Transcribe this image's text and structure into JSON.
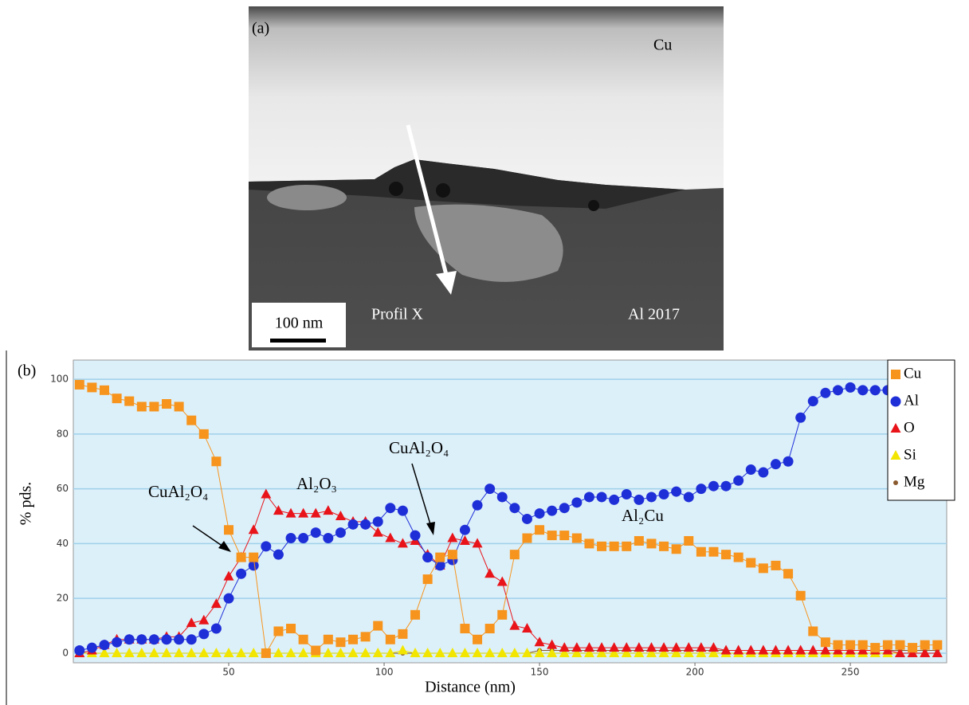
{
  "panel_a": {
    "panel_label": "(a)",
    "top_label": "Cu",
    "profile_label": "Profil X",
    "bottom_label": "Al 2017",
    "scale_bar": "100 nm"
  },
  "chart_data": {
    "type": "line",
    "panel_label": "(b)",
    "x_label": "Distance (nm)",
    "y_label": "% pds.",
    "annotations": [
      "CuAl₂O₄",
      "Al₂O₃",
      "CuAl₂O₄",
      "Al₂Cu"
    ],
    "x": [
      2,
      6,
      10,
      14,
      18,
      22,
      26,
      30,
      34,
      38,
      42,
      46,
      50,
      54,
      58,
      62,
      66,
      70,
      74,
      78,
      82,
      86,
      90,
      94,
      98,
      102,
      106,
      110,
      114,
      118,
      122,
      126,
      130,
      134,
      138,
      142,
      146,
      150,
      154,
      158,
      162,
      166,
      170,
      174,
      178,
      182,
      186,
      190,
      194,
      198,
      202,
      206,
      210,
      214,
      218,
      222,
      226,
      230,
      234,
      238,
      242,
      246,
      250,
      254,
      258,
      262,
      266,
      270,
      274,
      278
    ],
    "series": [
      {
        "name": "Cu",
        "color": "#f7941d",
        "marker": "square",
        "values": [
          98,
          97,
          96,
          93,
          92,
          90,
          90,
          91,
          90,
          85,
          80,
          70,
          45,
          35,
          35,
          0,
          8,
          9,
          5,
          1,
          5,
          4,
          5,
          6,
          10,
          5,
          7,
          14,
          27,
          35,
          36,
          9,
          5,
          9,
          14,
          36,
          42,
          45,
          43,
          43,
          42,
          40,
          39,
          39,
          39,
          41,
          40,
          39,
          38,
          41,
          37,
          37,
          36,
          35,
          33,
          31,
          32,
          29,
          21,
          8,
          4,
          3,
          3,
          3,
          2,
          3,
          3,
          2,
          3,
          3
        ]
      },
      {
        "name": "Al",
        "color": "#1f2fd8",
        "marker": "circle",
        "values": [
          1,
          2,
          3,
          4,
          5,
          5,
          5,
          5,
          5,
          5,
          7,
          9,
          20,
          29,
          32,
          39,
          36,
          42,
          42,
          44,
          42,
          44,
          47,
          47,
          48,
          53,
          52,
          43,
          35,
          32,
          34,
          45,
          54,
          60,
          57,
          53,
          49,
          51,
          52,
          53,
          55,
          57,
          57,
          56,
          58,
          56,
          57,
          58,
          59,
          57,
          60,
          61,
          61,
          63,
          67,
          66,
          69,
          70,
          86,
          92,
          95,
          96,
          97,
          96,
          96,
          96,
          null,
          null,
          null,
          null
        ]
      },
      {
        "name": "O",
        "color": "#e8141a",
        "marker": "triangle",
        "values": [
          0,
          1,
          3,
          5,
          5,
          5,
          5,
          6,
          6,
          11,
          12,
          18,
          28,
          35,
          45,
          58,
          52,
          51,
          51,
          51,
          52,
          50,
          48,
          48,
          44,
          42,
          40,
          41,
          36,
          32,
          42,
          41,
          40,
          29,
          26,
          10,
          9,
          4,
          3,
          2,
          2,
          2,
          2,
          2,
          2,
          2,
          2,
          2,
          2,
          2,
          2,
          2,
          1,
          1,
          1,
          1,
          1,
          1,
          1,
          1,
          1,
          1,
          1,
          1,
          1,
          1,
          0,
          0,
          0,
          0
        ]
      },
      {
        "name": "Si",
        "color": "#f2e600",
        "marker": "triangle",
        "values": [
          0,
          0,
          0,
          0,
          0,
          0,
          0,
          0,
          0,
          0,
          0,
          0,
          0,
          0,
          0,
          0,
          0,
          0,
          0,
          0,
          0,
          0,
          0,
          0,
          0,
          0,
          1,
          0,
          0,
          0,
          0,
          0,
          0,
          0,
          0,
          0,
          0,
          0,
          0,
          0,
          0,
          0,
          0,
          0,
          0,
          0,
          0,
          0,
          0,
          0,
          0,
          0,
          0,
          0,
          0,
          0,
          0,
          0,
          0,
          0,
          0,
          0,
          0,
          0,
          0,
          0,
          0,
          0,
          0,
          0
        ]
      },
      {
        "name": "Mg",
        "color": "#8a5a2e",
        "marker": "dot",
        "values": [
          0,
          0,
          0,
          0,
          0,
          0,
          0,
          0,
          0,
          0,
          0,
          0,
          0,
          0,
          0,
          0,
          0,
          0,
          0,
          0,
          0,
          0,
          0,
          0,
          0,
          0,
          0,
          0,
          0,
          0,
          0,
          0,
          0,
          0,
          0,
          0,
          0,
          1,
          1,
          1,
          1,
          1,
          1,
          1,
          1,
          1,
          1,
          1,
          1,
          1,
          1,
          1,
          1,
          1,
          1,
          1,
          1,
          1,
          1,
          1,
          1,
          1,
          1,
          1,
          1,
          1,
          1,
          1,
          1,
          1
        ]
      }
    ],
    "xlim": [
      0,
      281
    ],
    "ylim": [
      -3.5,
      107
    ],
    "xticks": [
      50,
      100,
      150,
      200,
      250
    ],
    "yticks": [
      0,
      20,
      40,
      60,
      80,
      100
    ],
    "grid": true,
    "legend": "upper right"
  }
}
